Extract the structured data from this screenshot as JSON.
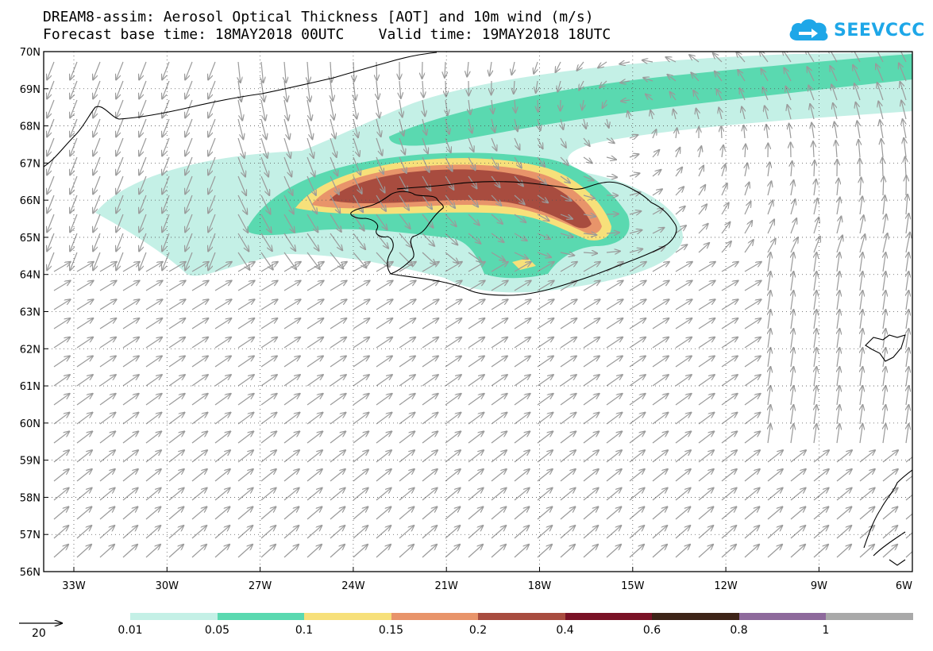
{
  "title": {
    "line1": "DREAM8-assim: Aerosol Optical Thickness [AOT] and 10m wind (m/s)",
    "line2": "Forecast base time: 18MAY2018 00UTC    Valid time: 19MAY2018 18UTC"
  },
  "logo": {
    "text": "SEEVCCC",
    "icon": "cloud-arrow-icon",
    "color": "#1ea7e8"
  },
  "map": {
    "lat_labels": [
      "70N",
      "69N",
      "68N",
      "67N",
      "66N",
      "65N",
      "64N",
      "63N",
      "62N",
      "61N",
      "60N",
      "59N",
      "58N",
      "57N",
      "56N"
    ],
    "lon_labels": [
      "33W",
      "30W",
      "27W",
      "24W",
      "21W",
      "18W",
      "15W",
      "12W",
      "9W",
      "6W"
    ]
  },
  "legend": {
    "reference_vector_value": "20",
    "levels": [
      "0.01",
      "0.05",
      "0.1",
      "0.15",
      "0.2",
      "0.4",
      "0.6",
      "0.8",
      "1"
    ],
    "colors": [
      "#c4f0e6",
      "#5ad9b0",
      "#f7e07a",
      "#e8946a",
      "#a84c3f",
      "#7a1226",
      "#3e2418",
      "#8e6a9c",
      "#a9a9a9"
    ]
  }
}
